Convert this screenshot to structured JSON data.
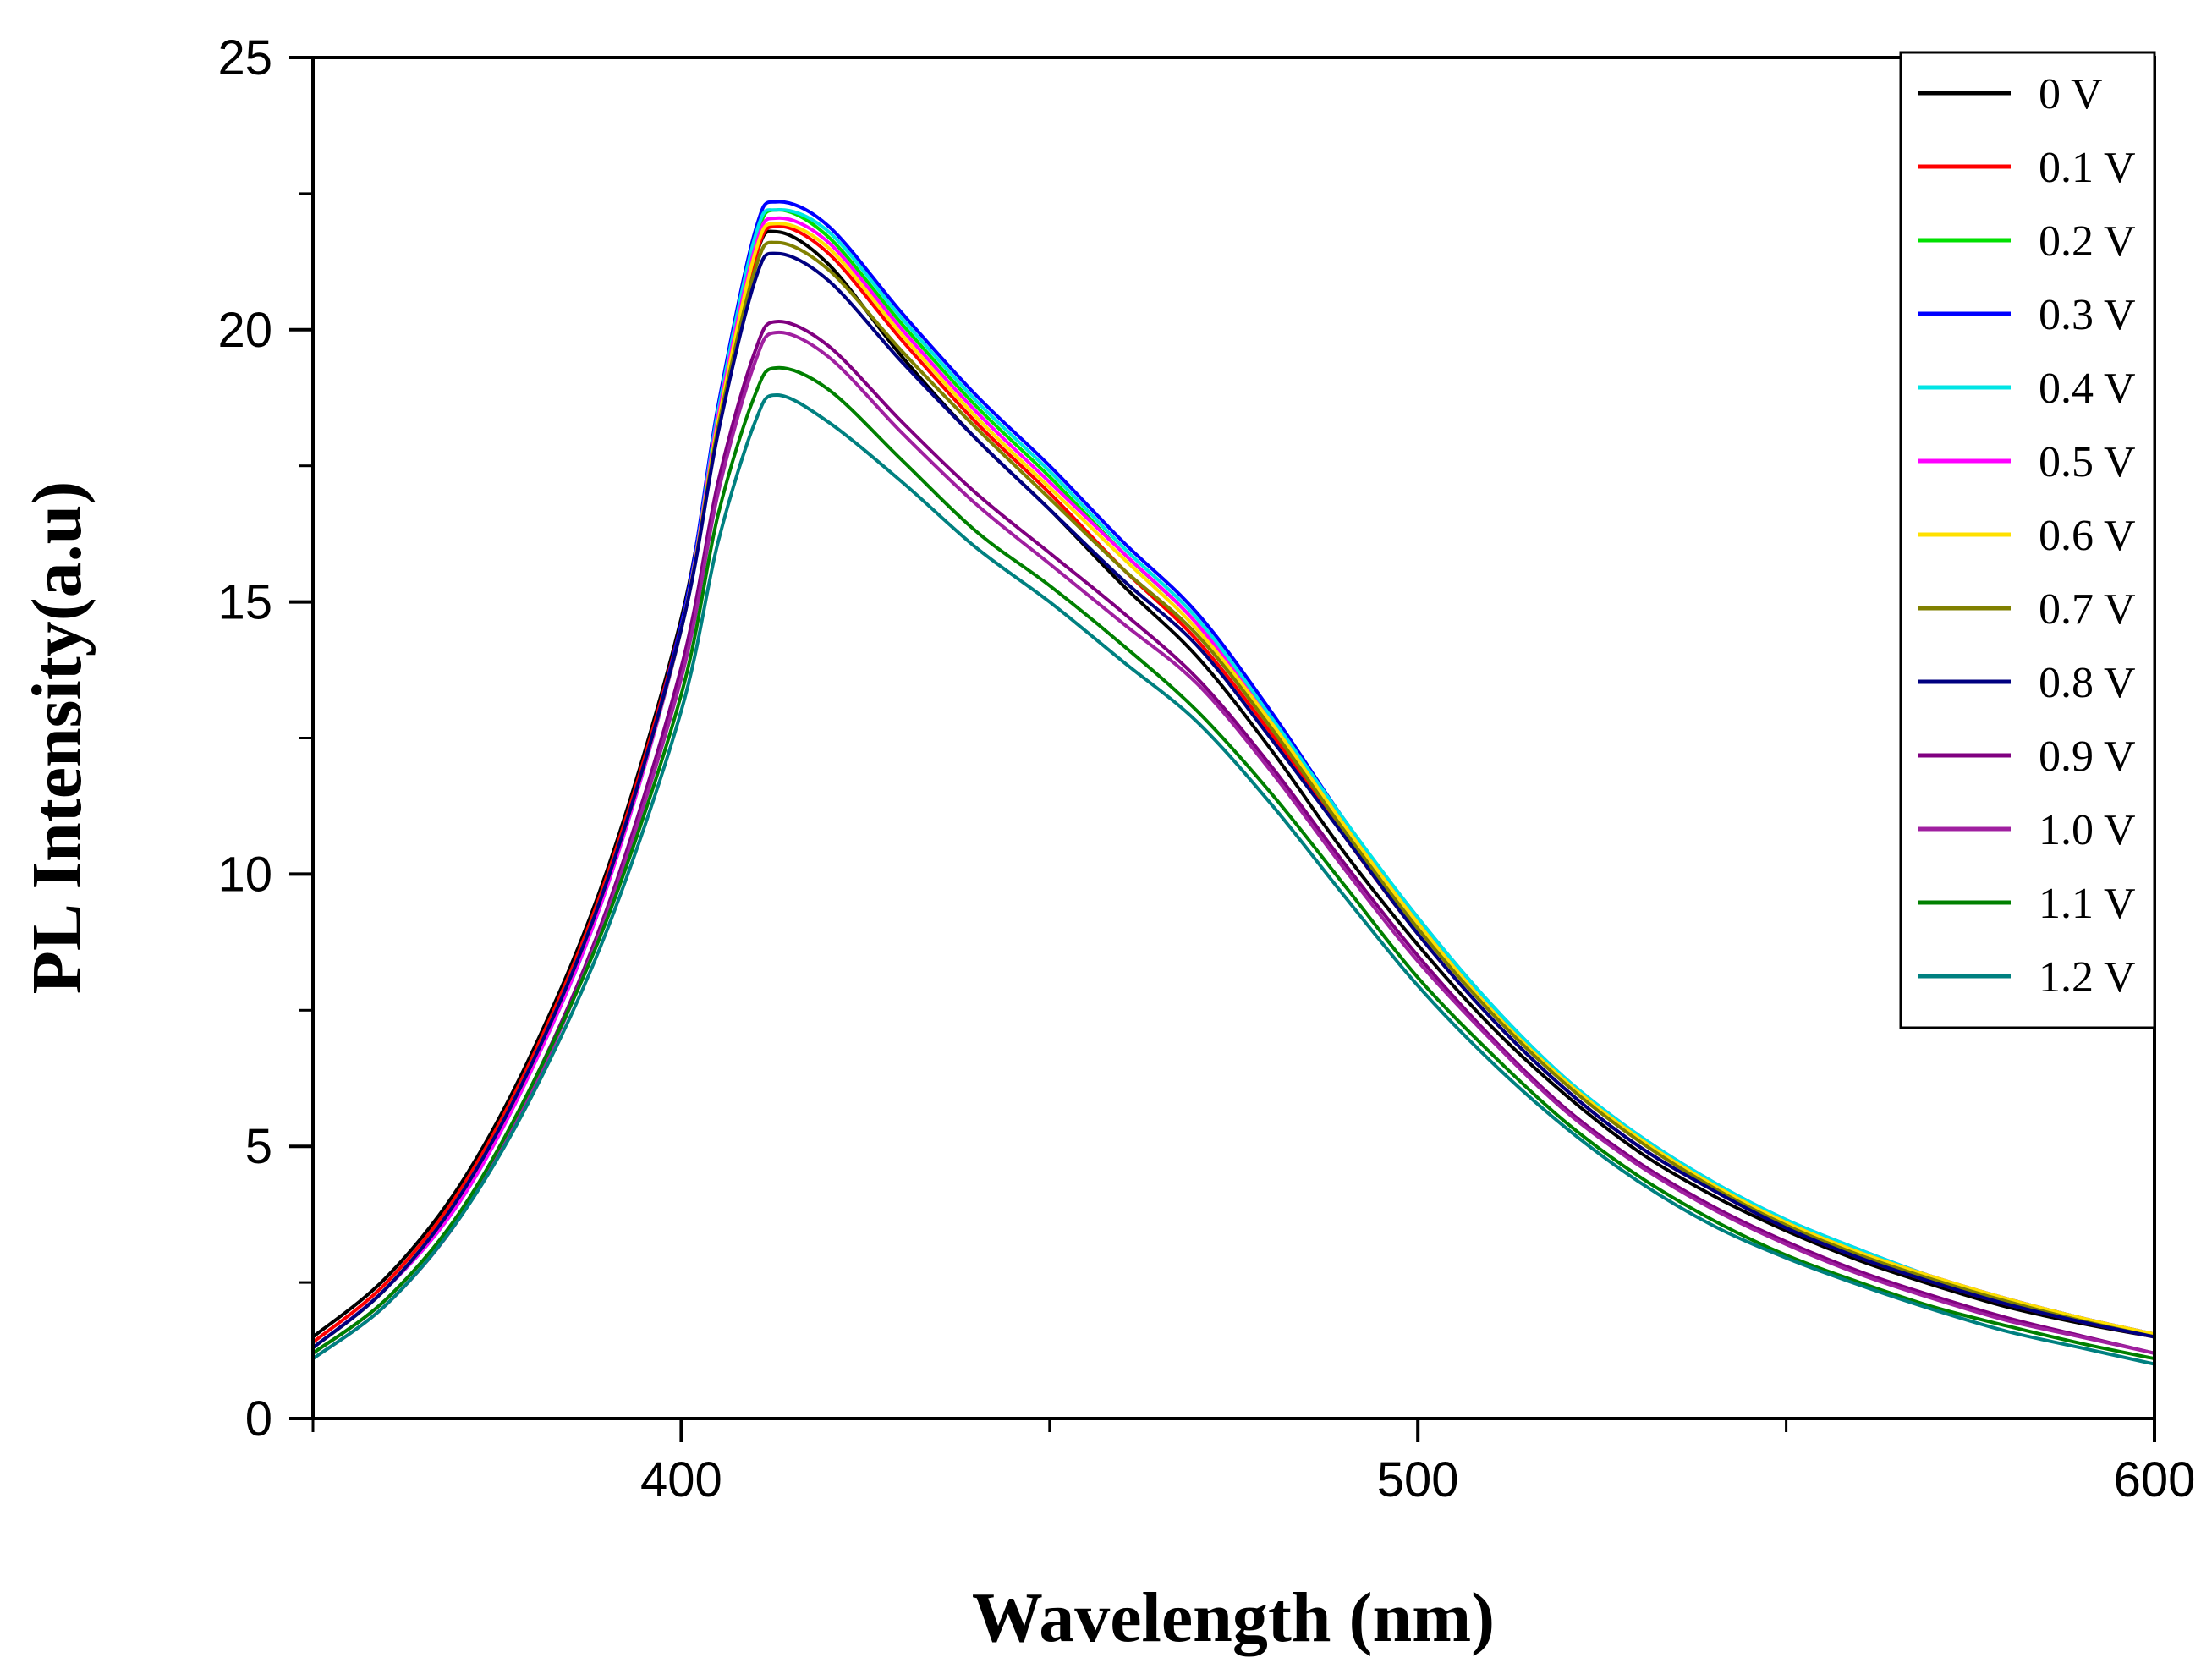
{
  "chart_data": {
    "type": "line",
    "title": "",
    "xlabel": "Wavelength (nm)",
    "ylabel": "PL Intensity(a.u)",
    "xlim": [
      350,
      600
    ],
    "ylim": [
      0,
      25
    ],
    "xticks": [
      400,
      500,
      600
    ],
    "yticks": [
      0,
      5,
      10,
      15,
      20,
      25
    ],
    "grid": false,
    "legend_position": "top-right",
    "x": [
      350,
      360,
      370,
      380,
      390,
      400,
      405,
      410,
      413,
      420,
      430,
      440,
      450,
      460,
      470,
      480,
      490,
      500,
      510,
      520,
      530,
      540,
      550,
      560,
      570,
      580,
      590,
      600
    ],
    "series": [
      {
        "name": "0 V",
        "color": "#000000",
        "values": [
          1.5,
          2.6,
          4.3,
          6.8,
          10.1,
          14.7,
          18.4,
          21.3,
          21.8,
          21.2,
          19.5,
          18.0,
          16.7,
          15.3,
          14.0,
          12.3,
          10.4,
          8.7,
          7.2,
          5.95,
          4.9,
          4.1,
          3.45,
          2.9,
          2.45,
          2.05,
          1.75,
          1.5
        ]
      },
      {
        "name": "0.1 V",
        "color": "#ff0000",
        "values": [
          1.4,
          2.5,
          4.2,
          6.7,
          10.0,
          14.6,
          18.3,
          21.3,
          21.9,
          21.4,
          19.8,
          18.3,
          17.0,
          15.6,
          14.3,
          12.6,
          10.7,
          8.9,
          7.35,
          6.05,
          5.0,
          4.2,
          3.5,
          2.95,
          2.5,
          2.1,
          1.78,
          1.5
        ]
      },
      {
        "name": "0.2 V",
        "color": "#00e000",
        "values": [
          1.3,
          2.4,
          4.1,
          6.6,
          9.9,
          14.5,
          18.4,
          21.6,
          22.2,
          21.7,
          20.1,
          18.6,
          17.3,
          15.9,
          14.6,
          12.8,
          10.9,
          9.1,
          7.5,
          6.2,
          5.15,
          4.3,
          3.6,
          3.05,
          2.6,
          2.2,
          1.85,
          1.55
        ]
      },
      {
        "name": "0.3 V",
        "color": "#0000ff",
        "values": [
          1.3,
          2.4,
          4.0,
          6.5,
          9.8,
          14.6,
          18.6,
          21.8,
          22.35,
          21.9,
          20.3,
          18.8,
          17.5,
          16.1,
          14.8,
          13.0,
          11.0,
          9.2,
          7.6,
          6.25,
          5.2,
          4.35,
          3.65,
          3.1,
          2.6,
          2.2,
          1.85,
          1.55
        ]
      },
      {
        "name": "0.4 V",
        "color": "#00e5e5",
        "values": [
          1.3,
          2.4,
          4.0,
          6.5,
          9.8,
          14.5,
          18.5,
          21.7,
          22.2,
          21.8,
          20.2,
          18.7,
          17.4,
          16.0,
          14.7,
          12.9,
          11.0,
          9.2,
          7.6,
          6.25,
          5.2,
          4.35,
          3.65,
          3.1,
          2.6,
          2.2,
          1.85,
          1.55
        ]
      },
      {
        "name": "0.5 V",
        "color": "#ff00ff",
        "values": [
          1.3,
          2.4,
          4.0,
          6.5,
          9.8,
          14.5,
          18.4,
          21.5,
          22.05,
          21.6,
          20.0,
          18.5,
          17.2,
          15.9,
          14.6,
          12.8,
          10.9,
          9.1,
          7.5,
          6.2,
          5.15,
          4.3,
          3.6,
          3.05,
          2.6,
          2.2,
          1.85,
          1.55
        ]
      },
      {
        "name": "0.6 V",
        "color": "#ffe000",
        "values": [
          1.3,
          2.4,
          4.1,
          6.6,
          9.9,
          14.5,
          18.3,
          21.4,
          21.95,
          21.5,
          19.9,
          18.4,
          17.1,
          15.8,
          14.5,
          12.8,
          10.9,
          9.1,
          7.5,
          6.2,
          5.15,
          4.3,
          3.6,
          3.05,
          2.6,
          2.2,
          1.85,
          1.55
        ]
      },
      {
        "name": "0.7 V",
        "color": "#808000",
        "values": [
          1.3,
          2.4,
          4.1,
          6.6,
          9.9,
          14.5,
          18.2,
          21.1,
          21.6,
          21.1,
          19.6,
          18.2,
          16.9,
          15.6,
          14.4,
          12.7,
          10.8,
          9.0,
          7.45,
          6.15,
          5.1,
          4.25,
          3.55,
          3.0,
          2.55,
          2.15,
          1.8,
          1.5
        ]
      },
      {
        "name": "0.8 V",
        "color": "#000080",
        "values": [
          1.3,
          2.4,
          4.1,
          6.6,
          9.9,
          14.5,
          18.1,
          20.9,
          21.4,
          20.9,
          19.4,
          18.0,
          16.7,
          15.4,
          14.2,
          12.5,
          10.7,
          8.9,
          7.35,
          6.05,
          5.0,
          4.2,
          3.5,
          2.95,
          2.5,
          2.1,
          1.78,
          1.5
        ]
      },
      {
        "name": "0.9 V",
        "color": "#800080",
        "values": [
          1.2,
          2.2,
          3.8,
          6.2,
          9.4,
          13.8,
          17.2,
          19.6,
          20.15,
          19.7,
          18.3,
          17.0,
          15.9,
          14.8,
          13.6,
          12.0,
          10.2,
          8.5,
          7.0,
          5.7,
          4.7,
          3.9,
          3.25,
          2.7,
          2.25,
          1.85,
          1.52,
          1.2
        ]
      },
      {
        "name": "1.0 V",
        "color": "#a020a0",
        "values": [
          1.1,
          2.1,
          3.7,
          6.1,
          9.3,
          13.6,
          17.0,
          19.4,
          19.95,
          19.5,
          18.1,
          16.8,
          15.7,
          14.6,
          13.5,
          11.9,
          10.1,
          8.4,
          6.95,
          5.65,
          4.65,
          3.85,
          3.2,
          2.65,
          2.2,
          1.8,
          1.5,
          1.2
        ]
      },
      {
        "name": "1.1 V",
        "color": "#008000",
        "values": [
          1.2,
          2.2,
          3.8,
          6.2,
          9.2,
          13.3,
          16.6,
          18.8,
          19.3,
          18.9,
          17.6,
          16.3,
          15.3,
          14.2,
          13.0,
          11.5,
          9.8,
          8.1,
          6.7,
          5.45,
          4.45,
          3.65,
          3.0,
          2.5,
          2.05,
          1.7,
          1.38,
          1.1
        ]
      },
      {
        "name": "1.2 V",
        "color": "#008080",
        "values": [
          1.1,
          2.1,
          3.7,
          6.0,
          9.0,
          13.0,
          16.1,
          18.3,
          18.8,
          18.3,
          17.2,
          16.0,
          15.0,
          13.9,
          12.8,
          11.3,
          9.6,
          7.95,
          6.55,
          5.35,
          4.35,
          3.55,
          2.95,
          2.45,
          2.0,
          1.6,
          1.3,
          1.0
        ]
      }
    ]
  }
}
